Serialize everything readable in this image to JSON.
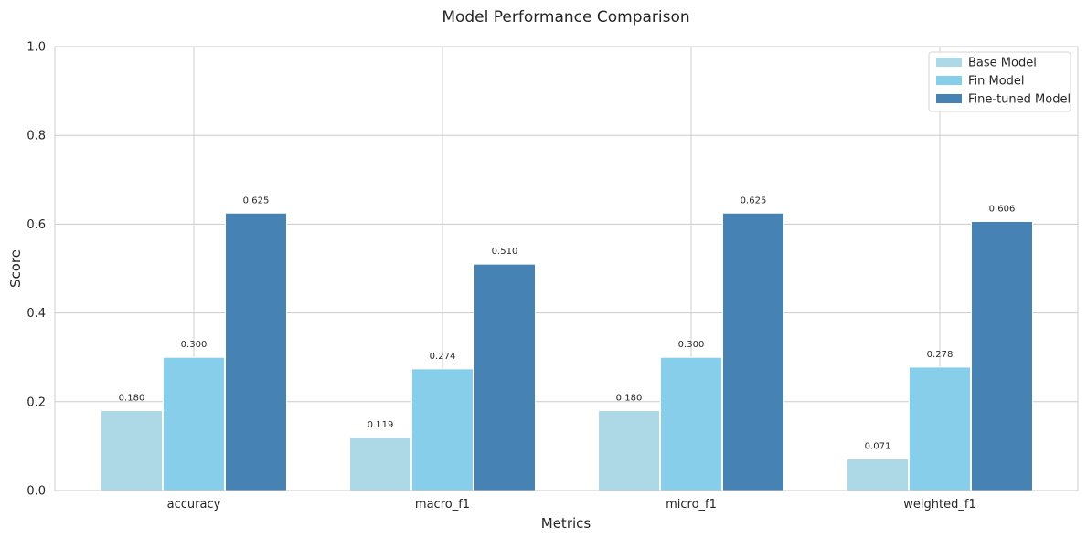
{
  "chart_data": {
    "type": "bar",
    "title": "Model Performance Comparison",
    "xlabel": "Metrics",
    "ylabel": "Score",
    "ylim": [
      0,
      1.0
    ],
    "yticks": [
      "0.0",
      "0.2",
      "0.4",
      "0.6",
      "0.8",
      "1.0"
    ],
    "categories": [
      "accuracy",
      "macro_f1",
      "micro_f1",
      "weighted_f1"
    ],
    "series": [
      {
        "name": "Base Model",
        "color": "#add8e6",
        "values": [
          0.18,
          0.119,
          0.18,
          0.071
        ],
        "labels": [
          "0.180",
          "0.119",
          "0.180",
          "0.071"
        ]
      },
      {
        "name": "Fin Model",
        "color": "#87ceeb",
        "values": [
          0.3,
          0.274,
          0.3,
          0.278
        ],
        "labels": [
          "0.300",
          "0.274",
          "0.300",
          "0.278"
        ]
      },
      {
        "name": "Fine-tuned Model",
        "color": "#4682b4",
        "values": [
          0.625,
          0.51,
          0.625,
          0.606
        ],
        "labels": [
          "0.625",
          "0.510",
          "0.625",
          "0.606"
        ]
      }
    ],
    "grid": true,
    "legend": "top-right"
  }
}
